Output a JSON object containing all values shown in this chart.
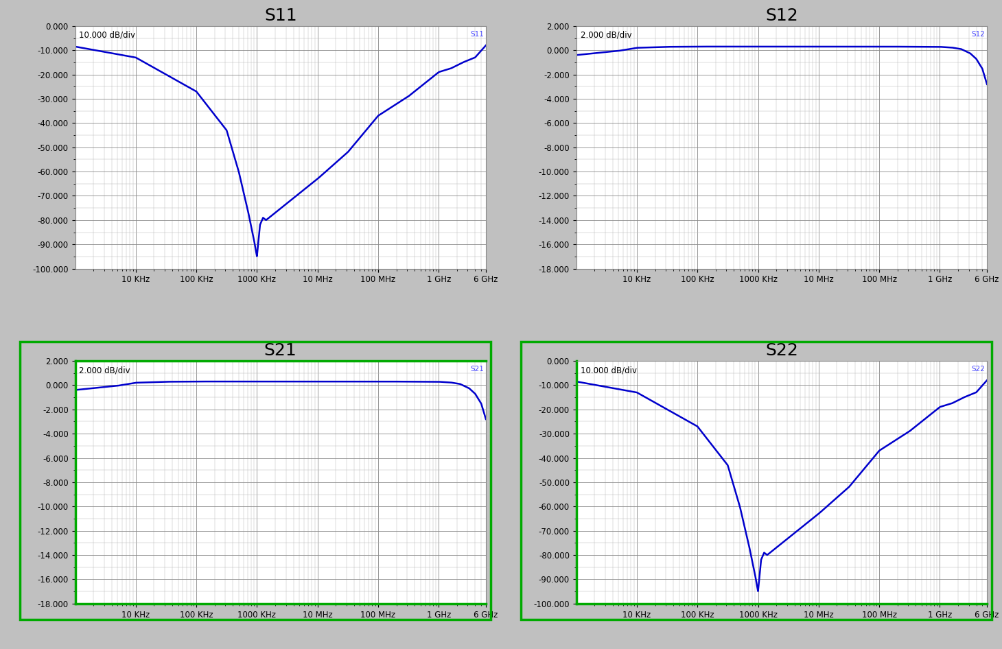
{
  "plots": [
    {
      "title": "S11",
      "scale_label": "10.000 dB/div",
      "label": "S11",
      "ylim": [
        -100,
        0
      ],
      "yticks": [
        0,
        -10,
        -20,
        -30,
        -40,
        -50,
        -60,
        -70,
        -80,
        -90,
        -100
      ],
      "ytick_labels": [
        "0.000",
        "-10.000",
        "-20.000",
        "-30.000",
        "-40.000",
        "-50.000",
        "-60.000",
        "-70.000",
        "-80.000",
        "-90.000",
        "-100.000"
      ],
      "type": "s11",
      "green_borders": []
    },
    {
      "title": "S12",
      "scale_label": "2.000 dB/div",
      "label": "S12",
      "ylim": [
        -18,
        2
      ],
      "yticks": [
        2,
        0,
        -2,
        -4,
        -6,
        -8,
        -10,
        -12,
        -14,
        -16,
        -18
      ],
      "ytick_labels": [
        "2.000",
        "0.000",
        "-2.000",
        "-4.000",
        "-6.000",
        "-8.000",
        "-10.000",
        "-12.000",
        "-14.000",
        "-16.000",
        "-18.000"
      ],
      "type": "s12",
      "green_borders": []
    },
    {
      "title": "S21",
      "scale_label": "2.000 dB/div",
      "label": "S21",
      "ylim": [
        -18,
        2
      ],
      "yticks": [
        2,
        0,
        -2,
        -4,
        -6,
        -8,
        -10,
        -12,
        -14,
        -16,
        -18
      ],
      "ytick_labels": [
        "2.000",
        "0.000",
        "-2.000",
        "-4.000",
        "-6.000",
        "-8.000",
        "-10.000",
        "-12.000",
        "-14.000",
        "-16.000",
        "-18.000"
      ],
      "type": "s21",
      "green_borders": [
        "left",
        "bottom",
        "top"
      ]
    },
    {
      "title": "S22",
      "scale_label": "10.000 dB/div",
      "label": "S22",
      "ylim": [
        -100,
        0
      ],
      "yticks": [
        0,
        -10,
        -20,
        -30,
        -40,
        -50,
        -60,
        -70,
        -80,
        -90,
        -100
      ],
      "ytick_labels": [
        "0.000",
        "-10.000",
        "-20.000",
        "-30.000",
        "-40.000",
        "-50.000",
        "-60.000",
        "-70.000",
        "-80.000",
        "-90.000",
        "-100.000"
      ],
      "type": "s22",
      "green_borders": [
        "left",
        "bottom"
      ]
    }
  ],
  "freq_start": 1000.0,
  "freq_end": 6000000000.0,
  "xtick_positions": [
    10000.0,
    100000.0,
    1000000.0,
    10000000.0,
    100000000.0,
    1000000000.0,
    6000000000.0
  ],
  "xtick_labels": [
    "10 KHz",
    "100 KHz",
    "1000 KHz",
    "10 MHz",
    "100 MHz",
    "1 GHz",
    "6 GHz"
  ],
  "line_color": "#0000cc",
  "line_width": 1.8,
  "fig_bg_color": "#c0c0c0",
  "plot_bg_color": "#ffffff",
  "panel_bg_color": "#e8e8e8",
  "grid_major_color": "#888888",
  "grid_minor_color": "#bbbbbb",
  "green_color": "#00aa00",
  "label_color": "#4444ff",
  "s11_keypoints_log": [
    3.0,
    4.0,
    5.0,
    5.5,
    5.7,
    5.85,
    5.95,
    6.0,
    6.05,
    6.1,
    6.15,
    6.2,
    6.5,
    7.0,
    7.5,
    8.0,
    8.5,
    8.7,
    9.0,
    9.2,
    9.4,
    9.6,
    9.778
  ],
  "s11_keypoints_val": [
    -8.5,
    -13,
    -27,
    -43,
    -60,
    -76,
    -88,
    -95,
    -82,
    -79,
    -80,
    -79,
    -73,
    -63,
    -52,
    -37,
    -29,
    -25,
    -19,
    -17.5,
    -15,
    -13,
    -8
  ],
  "s12_keypoints_log": [
    3.0,
    3.5,
    3.7,
    4.0,
    4.5,
    5.0,
    6.0,
    7.0,
    8.0,
    9.0,
    9.2,
    9.35,
    9.5,
    9.6,
    9.7,
    9.778
  ],
  "s12_keypoints_val": [
    -0.4,
    -0.15,
    -0.05,
    0.2,
    0.28,
    0.3,
    0.3,
    0.3,
    0.3,
    0.28,
    0.22,
    0.1,
    -0.25,
    -0.7,
    -1.5,
    -2.8
  ]
}
